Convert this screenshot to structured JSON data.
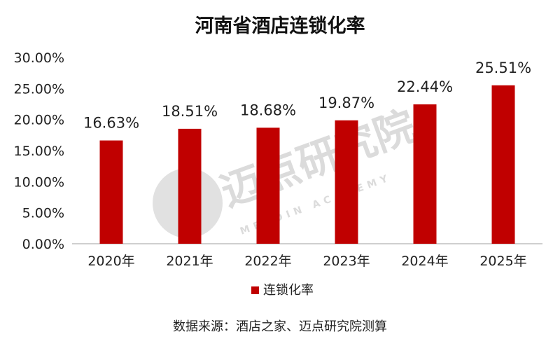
{
  "chart_data": {
    "type": "bar",
    "title": "河南省酒店连锁化率",
    "categories": [
      "2020年",
      "2021年",
      "2022年",
      "2023年",
      "2024年",
      "2025年"
    ],
    "series": [
      {
        "name": "连锁化率",
        "values": [
          16.63,
          18.51,
          18.68,
          19.87,
          22.44,
          25.51
        ],
        "color": "#c00000"
      }
    ],
    "data_labels": [
      "16.63%",
      "18.51%",
      "18.68%",
      "19.87%",
      "22.44%",
      "25.51%"
    ],
    "ylim": [
      0,
      30
    ],
    "y_ticks": [
      0,
      5,
      10,
      15,
      20,
      25,
      30
    ],
    "y_tick_labels": [
      "0.00%",
      "5.00%",
      "10.00%",
      "15.00%",
      "20.00%",
      "25.00%",
      "30.00%"
    ],
    "xlabel": "",
    "ylabel": "",
    "grid": false,
    "legend_position": "bottom"
  },
  "source_note": "数据来源：酒店之家、迈点研究院测算",
  "watermark": {
    "text": "迈点研究院",
    "subtext": "MEADIN ACADEMY"
  },
  "colors": {
    "bar": "#c00000",
    "axis": "#bfbfbf",
    "watermark": "#d9d9d9"
  }
}
